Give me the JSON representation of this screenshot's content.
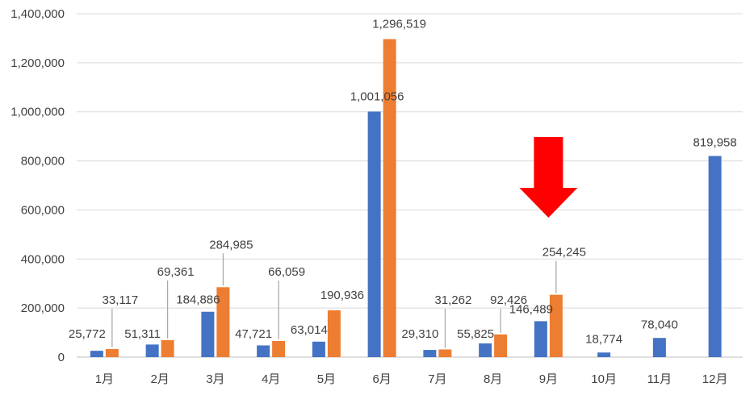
{
  "chart_data": {
    "type": "bar",
    "categories": [
      "1月",
      "2月",
      "3月",
      "4月",
      "5月",
      "6月",
      "7月",
      "8月",
      "9月",
      "10月",
      "11月",
      "12月"
    ],
    "series": [
      {
        "values": [
          25772,
          51311,
          184886,
          47721,
          63014,
          1001056,
          29310,
          55825,
          146489,
          18774,
          78040,
          819958
        ],
        "labels": [
          "25,772",
          "51,311",
          "184,886",
          "47,721",
          "63,014",
          "1,001,056",
          "29,310",
          "55,825",
          "146,489",
          "18,774",
          "78,040",
          "819,958"
        ],
        "color": "#4472C4"
      },
      {
        "values": [
          33117,
          69361,
          284985,
          66059,
          190936,
          1296519,
          31262,
          92426,
          254245,
          null,
          null,
          null
        ],
        "labels": [
          "33,117",
          "69,361",
          "284,985",
          "66,059",
          "190,936",
          "1,296,519",
          "31,262",
          "92,426",
          "254,245",
          "",
          "",
          ""
        ],
        "color": "#ED7D31"
      }
    ],
    "yticks": [
      "0",
      "200,000",
      "400,000",
      "600,000",
      "800,000",
      "1,000,000",
      "1,200,000",
      "1,400,000"
    ],
    "ylim": [
      0,
      1400000
    ],
    "ystep": 200000,
    "grid": true,
    "legend": "none",
    "annotation": {
      "type": "down-arrow",
      "color": "#FF0000",
      "category": "9月"
    }
  }
}
